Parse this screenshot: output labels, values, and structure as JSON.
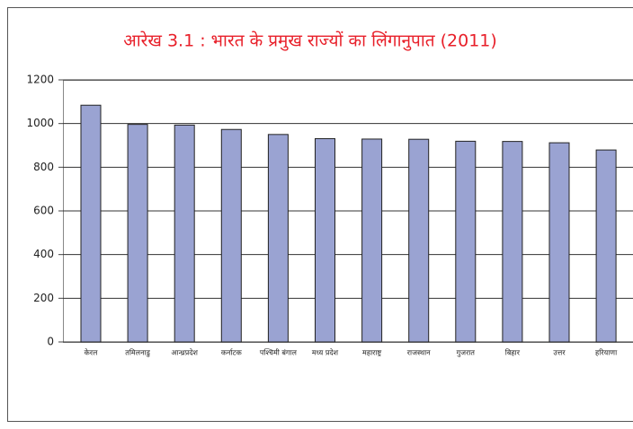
{
  "chart_data": {
    "type": "bar",
    "title": "आरेख 3.1 : भारत के प्रमुख राज्यों का लिंगानुपात (2011)",
    "categories": [
      "केरल",
      "तमिलनाडु",
      "आन्ध्रप्रदेश",
      "कर्नाटक",
      "पश्चिमी बंगाल",
      "मध्य प्रदेश",
      "महाराष्ट्र",
      "राजस्थान",
      "गुजरात",
      "बिहार",
      "उत्तर",
      "हरियाणा"
    ],
    "values": [
      1084,
      996,
      993,
      973,
      950,
      931,
      929,
      928,
      919,
      918,
      912,
      879
    ],
    "color": "#9aa3d2",
    "ylim": [
      0,
      1200
    ],
    "yticks": [
      0,
      200,
      400,
      600,
      800,
      1000,
      1200
    ],
    "grid": true
  }
}
